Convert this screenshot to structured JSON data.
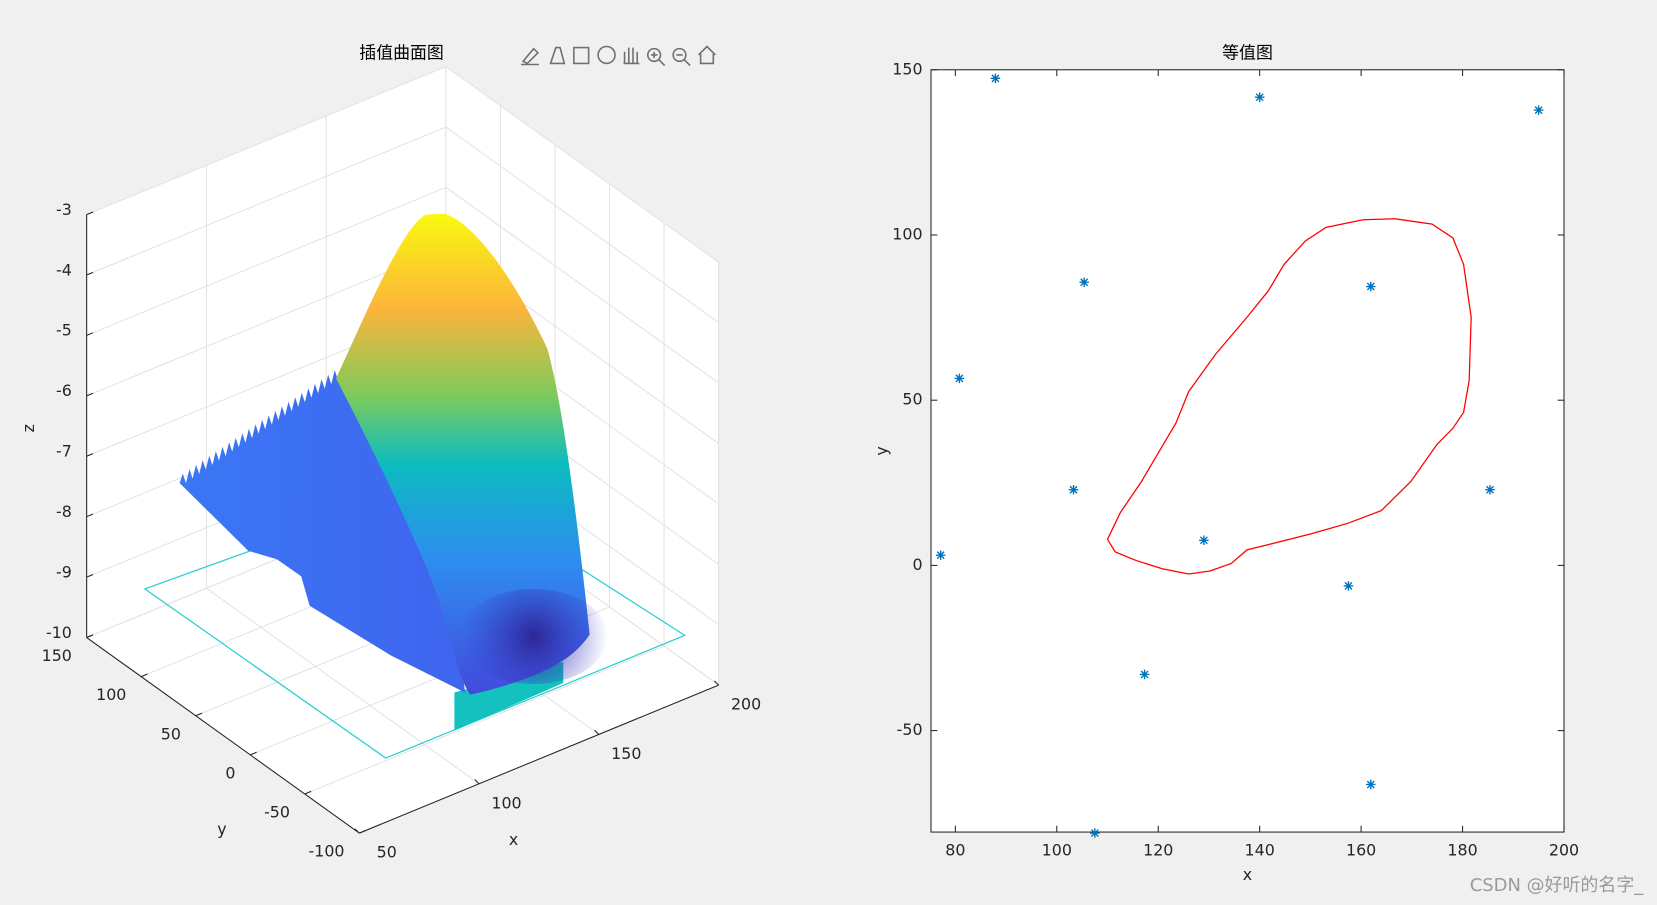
{
  "chart_data": [
    {
      "type": "surface3d",
      "title": "插值曲面图",
      "xlabel": "x",
      "ylabel": "y",
      "zlabel": "z",
      "xlim": [
        50,
        200
      ],
      "ylim": [
        -100,
        150
      ],
      "zlim": [
        -10,
        -3
      ],
      "xticks": [
        50,
        100,
        150,
        200
      ],
      "yticks": [
        -100,
        -50,
        0,
        50,
        100,
        150
      ],
      "zticks": [
        -10,
        -9,
        -8,
        -7,
        -6,
        -5,
        -4,
        -3
      ],
      "grid": true
    },
    {
      "type": "scatter",
      "title": "等值图",
      "xlabel": "x",
      "ylabel": "y",
      "xlim": [
        75.2,
        200
      ],
      "ylim": [
        -80.7,
        150
      ],
      "xticks": [
        80,
        100,
        120,
        140,
        160,
        180,
        200
      ],
      "yticks": [
        -50,
        0,
        50,
        100,
        150
      ],
      "points": {
        "color": "#0072bd",
        "x": [
          87.9,
          140,
          195,
          105.4,
          161.9,
          80.8,
          103.3,
          185.4,
          77.1,
          129,
          157.5,
          117.3,
          161.9,
          107.5
        ],
        "y": [
          147.4,
          141.7,
          137.8,
          85.7,
          84.4,
          56.6,
          22.9,
          22.9,
          3.1,
          7.6,
          -6.2,
          -33,
          -66.3,
          -81
        ]
      },
      "contour": {
        "color": "#ff0000",
        "x": [
          110,
          112.5,
          116.7,
          123.5,
          126,
          131.3,
          137.5,
          141.7,
          144.8,
          149,
          153.1,
          160.4,
          166.7,
          174,
          178.1,
          180.2,
          181.7,
          181.3,
          180.2,
          178.1,
          175,
          169.8,
          164,
          157.3,
          150,
          141.7,
          137.5,
          134.4,
          130.2,
          126,
          120.8,
          115.6,
          111.5,
          110
        ],
        "y": [
          7.9,
          15.9,
          25.4,
          43.1,
          52.6,
          63.9,
          75.1,
          83.1,
          91.1,
          98.2,
          102.3,
          104.6,
          104.9,
          103.3,
          99.1,
          91.1,
          75.1,
          55.9,
          46.3,
          41.5,
          36.7,
          25.4,
          16.6,
          12.7,
          9.5,
          6.3,
          4.7,
          0.6,
          -1.7,
          -2.6,
          -1,
          1.5,
          4.1,
          7.9
        ]
      }
    }
  ],
  "watermark": "CSDN @好听的名字_"
}
